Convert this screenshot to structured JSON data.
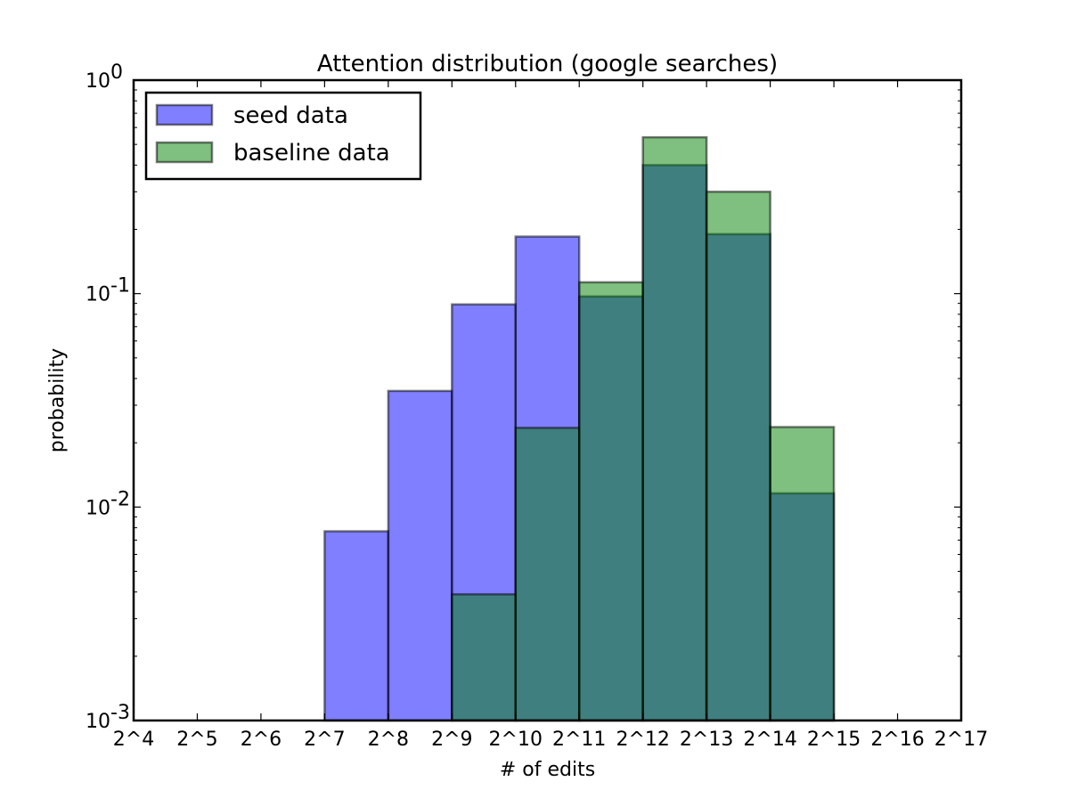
{
  "chart_data": {
    "type": "bar",
    "title": "Attention distribution (google searches)",
    "xlabel": "# of edits",
    "ylabel": "probability",
    "y_scale": "log",
    "ylim": [
      0.001,
      1
    ],
    "grid": false,
    "legend_position": "top-left",
    "x_bin_edges_exponent": [
      4,
      5,
      6,
      7,
      8,
      9,
      10,
      11,
      12,
      13,
      14,
      15,
      16,
      17
    ],
    "x_tick_labels": [
      "2^4",
      "2^5",
      "2^6",
      "2^7",
      "2^8",
      "2^9",
      "2^10",
      "2^11",
      "2^12",
      "2^13",
      "2^14",
      "2^15",
      "2^16",
      "2^17"
    ],
    "y_tick_labels": [
      {
        "value": 0.001,
        "base": "10",
        "exp": "-3"
      },
      {
        "value": 0.01,
        "base": "10",
        "exp": "-2"
      },
      {
        "value": 0.1,
        "base": "10",
        "exp": "-1"
      },
      {
        "value": 1,
        "base": "10",
        "exp": "0"
      }
    ],
    "series": [
      {
        "name": "seed data",
        "color": "#0000ff",
        "opacity": 0.5,
        "bins": [
          {
            "from_exp": 7,
            "to_exp": 8,
            "value": 0.0077
          },
          {
            "from_exp": 8,
            "to_exp": 9,
            "value": 0.035
          },
          {
            "from_exp": 9,
            "to_exp": 10,
            "value": 0.089
          },
          {
            "from_exp": 10,
            "to_exp": 11,
            "value": 0.185
          },
          {
            "from_exp": 11,
            "to_exp": 12,
            "value": 0.097
          },
          {
            "from_exp": 12,
            "to_exp": 13,
            "value": 0.4
          },
          {
            "from_exp": 13,
            "to_exp": 14,
            "value": 0.19
          },
          {
            "from_exp": 14,
            "to_exp": 15,
            "value": 0.0116
          }
        ]
      },
      {
        "name": "baseline data",
        "color": "#008000",
        "opacity": 0.5,
        "bins": [
          {
            "from_exp": 9,
            "to_exp": 10,
            "value": 0.0039
          },
          {
            "from_exp": 10,
            "to_exp": 11,
            "value": 0.0235
          },
          {
            "from_exp": 11,
            "to_exp": 12,
            "value": 0.113
          },
          {
            "from_exp": 12,
            "to_exp": 13,
            "value": 0.54
          },
          {
            "from_exp": 13,
            "to_exp": 14,
            "value": 0.3
          },
          {
            "from_exp": 14,
            "to_exp": 15,
            "value": 0.0237
          }
        ]
      }
    ]
  }
}
